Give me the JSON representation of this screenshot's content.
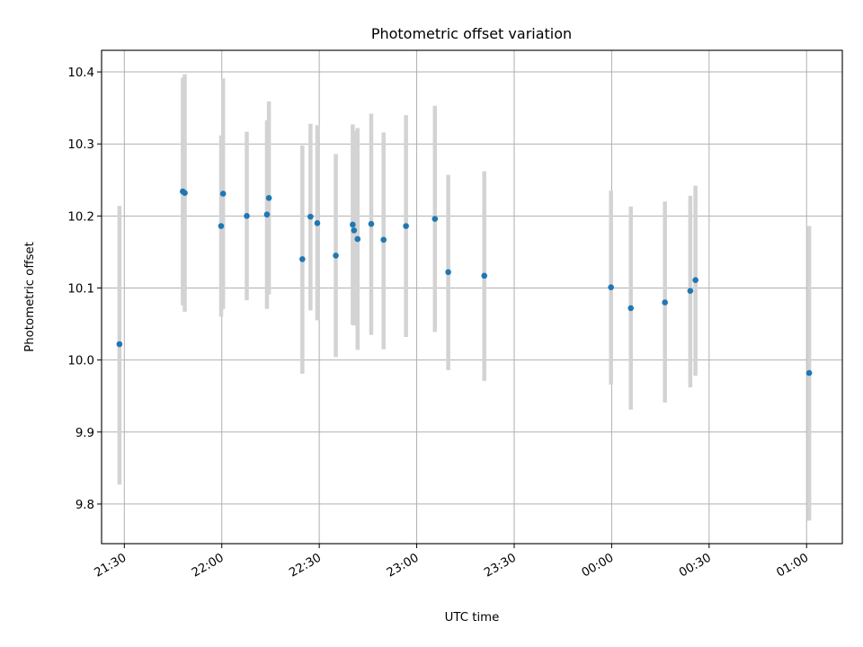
{
  "chart_data": {
    "type": "scatter",
    "title": "Photometric offset variation",
    "xlabel": "UTC time",
    "ylabel": "Photometric offset",
    "xlim": [
      "21:23",
      "01:11"
    ],
    "ylim": [
      9.745,
      10.43
    ],
    "grid": true,
    "x_ticks": [
      "21:30",
      "22:00",
      "22:30",
      "23:00",
      "23:30",
      "00:00",
      "00:30",
      "01:00"
    ],
    "y_ticks": [
      9.8,
      9.9,
      10.0,
      10.1,
      10.2,
      10.3,
      10.4
    ],
    "point_color": "#1f77b4",
    "errorbar_color": "#d3d3d3",
    "points": [
      {
        "x": "21:28:30",
        "y": 10.022,
        "ylow": 9.827,
        "yhigh": 10.214
      },
      {
        "x": "21:48:00",
        "y": 10.234,
        "ylow": 10.076,
        "yhigh": 10.392
      },
      {
        "x": "21:48:36",
        "y": 10.232,
        "ylow": 10.067,
        "yhigh": 10.397
      },
      {
        "x": "21:59:48",
        "y": 10.186,
        "ylow": 10.06,
        "yhigh": 10.312
      },
      {
        "x": "22:00:24",
        "y": 10.231,
        "ylow": 10.071,
        "yhigh": 10.391
      },
      {
        "x": "22:07:42",
        "y": 10.2,
        "ylow": 10.083,
        "yhigh": 10.317
      },
      {
        "x": "22:13:54",
        "y": 10.202,
        "ylow": 10.071,
        "yhigh": 10.333
      },
      {
        "x": "22:14:30",
        "y": 10.225,
        "ylow": 10.091,
        "yhigh": 10.359
      },
      {
        "x": "22:24:48",
        "y": 10.14,
        "ylow": 9.981,
        "yhigh": 10.298
      },
      {
        "x": "22:27:18",
        "y": 10.199,
        "ylow": 10.069,
        "yhigh": 10.328
      },
      {
        "x": "22:29:24",
        "y": 10.19,
        "ylow": 10.055,
        "yhigh": 10.326
      },
      {
        "x": "22:35:06",
        "y": 10.145,
        "ylow": 10.004,
        "yhigh": 10.286
      },
      {
        "x": "22:40:18",
        "y": 10.188,
        "ylow": 10.049,
        "yhigh": 10.327
      },
      {
        "x": "22:40:42",
        "y": 10.18,
        "ylow": 10.048,
        "yhigh": 10.318
      },
      {
        "x": "22:41:48",
        "y": 10.168,
        "ylow": 10.014,
        "yhigh": 10.322
      },
      {
        "x": "22:46:00",
        "y": 10.189,
        "ylow": 10.035,
        "yhigh": 10.342
      },
      {
        "x": "22:49:48",
        "y": 10.167,
        "ylow": 10.015,
        "yhigh": 10.316
      },
      {
        "x": "22:56:42",
        "y": 10.186,
        "ylow": 10.032,
        "yhigh": 10.34
      },
      {
        "x": "23:05:36",
        "y": 10.196,
        "ylow": 10.039,
        "yhigh": 10.353
      },
      {
        "x": "23:09:42",
        "y": 10.122,
        "ylow": 9.986,
        "yhigh": 10.257
      },
      {
        "x": "23:20:48",
        "y": 10.117,
        "ylow": 9.971,
        "yhigh": 10.262
      },
      {
        "x": "23:59:48",
        "y": 10.101,
        "ylow": 9.966,
        "yhigh": 10.235
      },
      {
        "x": "00:05:54",
        "y": 10.072,
        "ylow": 9.931,
        "yhigh": 10.213
      },
      {
        "x": "00:16:24",
        "y": 10.08,
        "ylow": 9.941,
        "yhigh": 10.22
      },
      {
        "x": "00:24:12",
        "y": 10.096,
        "ylow": 9.962,
        "yhigh": 10.228
      },
      {
        "x": "00:25:48",
        "y": 10.111,
        "ylow": 9.978,
        "yhigh": 10.242
      },
      {
        "x": "01:00:48",
        "y": 9.982,
        "ylow": 9.777,
        "yhigh": 10.186
      }
    ]
  }
}
